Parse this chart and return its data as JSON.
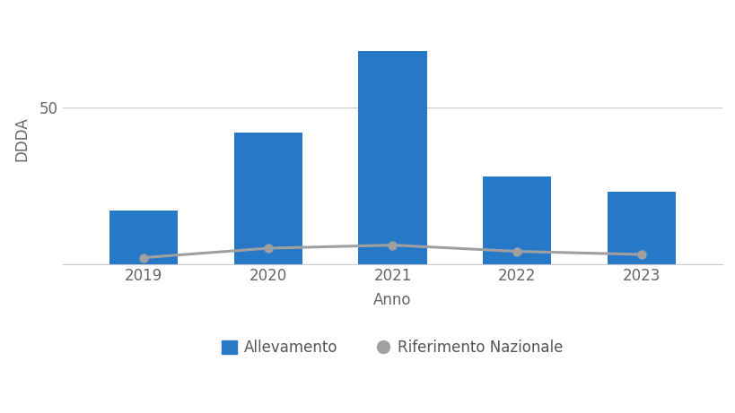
{
  "years": [
    2019,
    2020,
    2021,
    2022,
    2023
  ],
  "bar_values": [
    17,
    42,
    68,
    28,
    23
  ],
  "line_values": [
    2.0,
    5.0,
    6.0,
    4.0,
    3.0
  ],
  "bar_color": "#2878C8",
  "line_color": "#A0A0A0",
  "background_color": "#FFFFFF",
  "ylabel": "DDDA",
  "xlabel": "Anno",
  "ylim": [
    0,
    80
  ],
  "yticks": [
    0,
    50
  ],
  "legend_bar_label": "Allevamento",
  "legend_line_label": "Riferimento Nazionale",
  "grid_color": "#C8C8C8",
  "figsize": [
    8.2,
    4.61
  ],
  "dpi": 100
}
